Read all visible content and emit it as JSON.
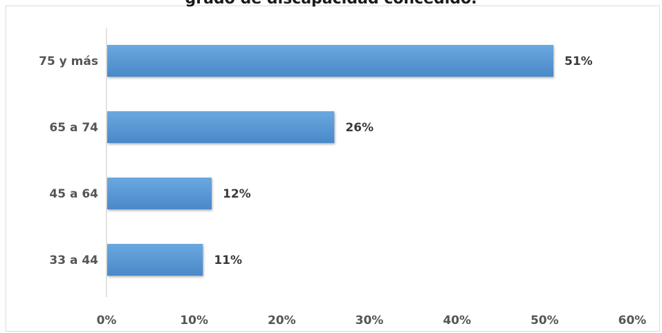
{
  "chart_data": {
    "type": "bar",
    "orientation": "horizontal",
    "title": "grado de discapacidad concedido.",
    "categories": [
      "75 y más",
      "65 a 74",
      "45 a 64",
      "33 a 44"
    ],
    "values": [
      51,
      26,
      12,
      11
    ],
    "data_labels": [
      "51%",
      "26%",
      "12%",
      "11%"
    ],
    "xlim": [
      0,
      60
    ],
    "x_ticks": [
      0,
      10,
      20,
      30,
      40,
      50,
      60
    ],
    "x_tick_labels": [
      "0%",
      "10%",
      "20%",
      "30%",
      "40%",
      "50%",
      "60%"
    ],
    "grid": false,
    "legend": "none",
    "bar_color": "#5b9bd5"
  }
}
